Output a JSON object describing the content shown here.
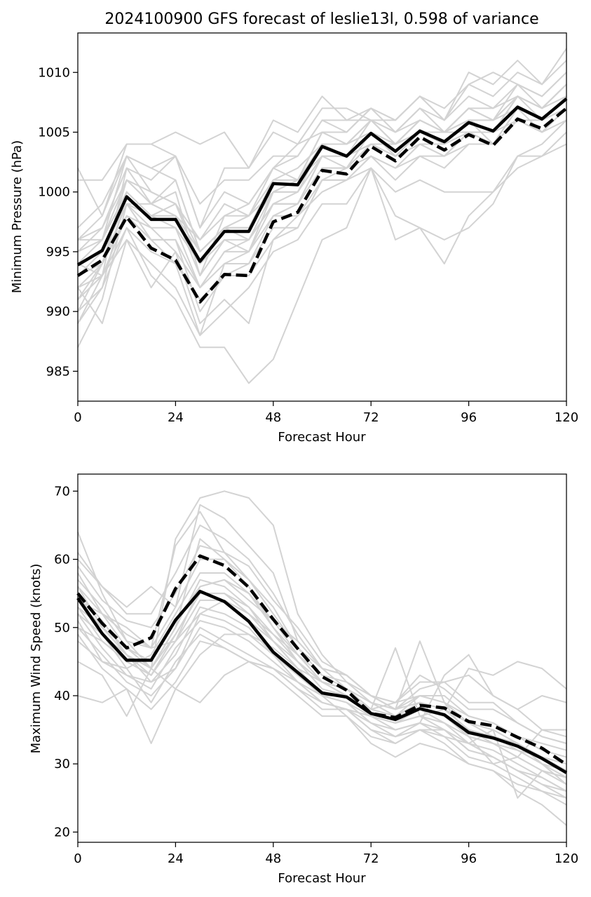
{
  "title": "2024100900 GFS forecast of leslie13l, 0.598 of variance",
  "colors": {
    "ensemble": "#d3d3d3",
    "mean": "#000000",
    "axes": "#000000"
  },
  "chart_data": [
    {
      "type": "line",
      "title": "2024100900 GFS forecast of leslie13l, 0.598 of variance",
      "xlabel": "Forecast Hour",
      "ylabel": "Minimum Pressure (hPa)",
      "xlim": [
        0,
        120
      ],
      "ylim": [
        982.5,
        1013.3
      ],
      "xticks": [
        0,
        24,
        48,
        72,
        96,
        120
      ],
      "yticks": [
        985,
        990,
        995,
        1000,
        1005,
        1010
      ],
      "x": [
        0,
        6,
        12,
        18,
        24,
        30,
        36,
        42,
        48,
        54,
        60,
        66,
        72,
        78,
        84,
        90,
        96,
        102,
        108,
        114,
        120
      ],
      "grid": false,
      "legend": "none",
      "series": [
        {
          "style": "solid",
          "values": [
            993.9,
            995.1,
            999.6,
            997.7,
            997.7,
            994.2,
            996.7,
            996.7,
            1000.7,
            1000.6,
            1003.8,
            1003.0,
            1004.9,
            1003.4,
            1005.1,
            1004.2,
            1005.8,
            1005.1,
            1007.1,
            1006.1,
            1007.8
          ]
        },
        {
          "style": "dashed",
          "values": [
            993.0,
            994.3,
            997.9,
            995.3,
            994.3,
            990.8,
            993.1,
            993.0,
            997.5,
            998.3,
            1001.8,
            1001.5,
            1003.8,
            1002.6,
            1004.6,
            1003.5,
            1004.8,
            1003.9,
            1006.1,
            1005.3,
            1007.0
          ]
        }
      ],
      "ensemble": [
        [
          987,
          991,
          999,
          996,
          994,
          988,
          994,
          995,
          1000,
          1000,
          1003,
          1003,
          1004,
          1003,
          1004,
          1004,
          1006,
          1005,
          1008,
          1006,
          1008
        ],
        [
          989,
          993,
          1002,
          999,
          1000,
          993,
          998,
          999,
          1002,
          1001,
          1005,
          1004,
          1006,
          1005,
          1006,
          1005,
          1007,
          1006,
          1009,
          1007,
          1009
        ],
        [
          990,
          992,
          1000,
          998,
          997,
          992,
          995,
          996,
          999,
          1000,
          1004,
          1003,
          1005,
          1004,
          1005,
          1004,
          1006,
          1005,
          1007,
          1006,
          1008
        ],
        [
          992,
          994,
          1001,
          999,
          1001,
          995,
          997,
          998,
          1001,
          1002,
          1004,
          1004,
          1005,
          1004,
          1006,
          1005,
          1006,
          1005,
          1008,
          1007,
          1009
        ],
        [
          994,
          996,
          1003,
          1000,
          999,
          996,
          999,
          998,
          1002,
          1003,
          1006,
          1005,
          1007,
          1005,
          1007,
          1006,
          1008,
          1007,
          1009,
          1008,
          1010
        ],
        [
          996,
          998,
          1004,
          1004,
          1005,
          1004,
          1005,
          1002,
          1006,
          1005,
          1008,
          1006,
          1007,
          1006,
          1008,
          1006,
          1010,
          1009,
          1011,
          1009,
          1012
        ],
        [
          995,
          997,
          1002,
          1001,
          1003,
          999,
          1001,
          1001,
          1003,
          1003,
          1006,
          1006,
          1006,
          1005,
          1007,
          1005,
          1007,
          1007,
          1008,
          1007,
          1009
        ],
        [
          997,
          999,
          1003,
          1002,
          1003,
          997,
          1000,
          999,
          1002,
          1004,
          1005,
          1005,
          1007,
          1006,
          1008,
          1007,
          1009,
          1008,
          1010,
          1009,
          1011
        ],
        [
          992,
          989,
          996,
          992,
          995,
          989,
          991,
          989,
          996,
          997,
          1001,
          1001,
          1003,
          1001,
          1003,
          1002,
          1004,
          1004,
          1006,
          1005,
          1006
        ],
        [
          991,
          993,
          997,
          995,
          994,
          991,
          993,
          993,
          996,
          998,
          1000,
          1001,
          1002,
          1000,
          1001,
          1000,
          1000,
          1000,
          1003,
          1003,
          1004
        ],
        [
          990,
          994,
          998,
          996,
          996,
          990,
          993,
          994,
          997,
          997,
          1001,
          1001,
          1003,
          1002,
          1003,
          1003,
          1005,
          1004,
          1007,
          1005,
          1007
        ],
        [
          993,
          995,
          999,
          998,
          998,
          993,
          996,
          996,
          999,
          999,
          1003,
          1002,
          1004,
          1003,
          1004,
          1004,
          1006,
          1004,
          1006,
          1005,
          1007
        ],
        [
          993,
          994,
          999,
          999,
          998,
          995,
          997,
          997,
          1001,
          1001,
          1003,
          1003,
          1006,
          1004,
          1005,
          1005,
          1007,
          1006,
          1007,
          1006,
          1008
        ],
        [
          996,
          997,
          1001,
          999,
          998,
          996,
          998,
          998,
          1000,
          1001,
          1005,
          1004,
          1005,
          1004,
          1006,
          1005,
          1006,
          1006,
          1007,
          1006,
          1008
        ],
        [
          992,
          993,
          996,
          994,
          992,
          988,
          990,
          992,
          995,
          996,
          999,
          999,
          1002,
          998,
          997,
          994,
          998,
          1000,
          1002,
          1003,
          1005
        ],
        [
          989,
          992,
          997,
          993,
          991,
          987,
          987,
          984,
          986,
          991,
          996,
          997,
          1002,
          996,
          997,
          996,
          997,
          999,
          1003,
          1004,
          1006
        ],
        [
          994,
          995,
          999,
          997,
          995,
          992,
          994,
          994,
          998,
          998,
          1001,
          1002,
          1003,
          1002,
          1004,
          1003,
          1004,
          1004,
          1007,
          1006,
          1007
        ],
        [
          991,
          994,
          998,
          997,
          997,
          994,
          996,
          995,
          998,
          999,
          1002,
          1002,
          1005,
          1003,
          1005,
          1004,
          1005,
          1005,
          1007,
          1006,
          1008
        ],
        [
          995,
          996,
          1000,
          998,
          999,
          995,
          997,
          997,
          1000,
          1001,
          1004,
          1004,
          1006,
          1004,
          1006,
          1005,
          1006,
          1006,
          1008,
          1007,
          1008
        ],
        [
          1001,
          1001,
          1004,
          1004,
          1003,
          997,
          1002,
          1002,
          1005,
          1004,
          1007,
          1007,
          1006,
          1006,
          1008,
          1006,
          1009,
          1010,
          1009,
          1008,
          1010
        ],
        [
          1002,
          998,
          1003,
          1002,
          1001,
          995,
          997,
          996,
          999,
          999,
          1003,
          1003,
          1004,
          1004,
          1005,
          1005,
          1005,
          1005,
          1006,
          1006,
          1007
        ],
        [
          994,
          993,
          998,
          996,
          996,
          992,
          995,
          995,
          999,
          999,
          1002,
          1002,
          1004,
          1003,
          1004,
          1003,
          1005,
          1004,
          1006,
          1005,
          1007
        ],
        [
          996,
          996,
          1001,
          1000,
          999,
          994,
          997,
          996,
          1000,
          1000,
          1003,
          1003,
          1005,
          1003,
          1005,
          1005,
          1007,
          1006,
          1008,
          1007,
          1009
        ]
      ]
    },
    {
      "type": "line",
      "title": "",
      "xlabel": "Forecast Hour",
      "ylabel": "Maximum Wind Speed (knots)",
      "xlim": [
        0,
        120
      ],
      "ylim": [
        18.5,
        72.5
      ],
      "xticks": [
        0,
        24,
        48,
        72,
        96,
        120
      ],
      "yticks": [
        20,
        30,
        40,
        50,
        60,
        70
      ],
      "x": [
        0,
        6,
        12,
        18,
        24,
        30,
        36,
        42,
        48,
        54,
        60,
        66,
        72,
        78,
        84,
        90,
        96,
        102,
        108,
        114,
        120
      ],
      "grid": false,
      "legend": "none",
      "series": [
        {
          "style": "solid",
          "values": [
            54.3,
            49.1,
            45.2,
            45.2,
            51.1,
            55.3,
            53.8,
            50.9,
            46.4,
            43.4,
            40.4,
            39.8,
            37.4,
            36.5,
            38.1,
            37.2,
            34.6,
            33.8,
            32.6,
            30.8,
            28.7
          ]
        },
        {
          "style": "dashed",
          "values": [
            55.0,
            50.6,
            47.0,
            48.5,
            55.7,
            60.5,
            59.1,
            55.9,
            51.2,
            46.9,
            42.8,
            40.8,
            37.4,
            36.8,
            38.6,
            38.2,
            36.2,
            35.6,
            33.9,
            32.3,
            29.9
          ]
        }
      ],
      "ensemble": [
        [
          64,
          55,
          48,
          44,
          63,
          69,
          70,
          69,
          65,
          52,
          46,
          42,
          40,
          38,
          40,
          40,
          37,
          36,
          34,
          33,
          32
        ],
        [
          60,
          56,
          53,
          56,
          53,
          68,
          66,
          62,
          58,
          48,
          44,
          41,
          38,
          39,
          43,
          41,
          38,
          38,
          36,
          34,
          33
        ],
        [
          58,
          52,
          50,
          47,
          62,
          67,
          61,
          57,
          52,
          47,
          44,
          43,
          40,
          38,
          39,
          38,
          36,
          34,
          33,
          30,
          29
        ],
        [
          56,
          50,
          47,
          44,
          50,
          63,
          60,
          57,
          53,
          47,
          43,
          41,
          39,
          37,
          38,
          37,
          35,
          34,
          32,
          30,
          28
        ],
        [
          55,
          49,
          44,
          46,
          52,
          58,
          58,
          55,
          50,
          45,
          42,
          41,
          38,
          37,
          39,
          38,
          35,
          34,
          33,
          30,
          27
        ],
        [
          54,
          52,
          49,
          47,
          48,
          56,
          57,
          54,
          51,
          46,
          42,
          40,
          38,
          37,
          38,
          37,
          34,
          33,
          32,
          31,
          29
        ],
        [
          53,
          48,
          45,
          43,
          49,
          55,
          55,
          52,
          48,
          44,
          40,
          40,
          37,
          36,
          37,
          36,
          34,
          33,
          31,
          29,
          27
        ],
        [
          52,
          47,
          43,
          42,
          46,
          53,
          52,
          50,
          46,
          43,
          40,
          39,
          37,
          36,
          38,
          36,
          33,
          32,
          30,
          28,
          26
        ],
        [
          51,
          45,
          43,
          41,
          47,
          51,
          50,
          48,
          45,
          42,
          39,
          38,
          36,
          35,
          36,
          35,
          32,
          31,
          29,
          27,
          26
        ],
        [
          50,
          46,
          42,
          40,
          44,
          50,
          48,
          46,
          44,
          41,
          38,
          38,
          35,
          34,
          36,
          34,
          31,
          30,
          28,
          26,
          25
        ],
        [
          49,
          44,
          41,
          38,
          42,
          48,
          47,
          45,
          43,
          40,
          37,
          37,
          34,
          33,
          35,
          33,
          30,
          29,
          27,
          26,
          24
        ],
        [
          45,
          43,
          37,
          44,
          41,
          39,
          43,
          45,
          44,
          41,
          39,
          38,
          37,
          36,
          37,
          35,
          33,
          31,
          29,
          27,
          25
        ],
        [
          40,
          39,
          41,
          33,
          41,
          46,
          49,
          49,
          47,
          44,
          40,
          37,
          33,
          31,
          33,
          32,
          30,
          29,
          26,
          24,
          21
        ],
        [
          55,
          51,
          46,
          43,
          48,
          52,
          51,
          49,
          46,
          42,
          39,
          38,
          35,
          33,
          35,
          35,
          32,
          31,
          29,
          28,
          26
        ],
        [
          57,
          53,
          48,
          47,
          53,
          60,
          60,
          56,
          50,
          46,
          43,
          42,
          39,
          37,
          40,
          39,
          37,
          36,
          34,
          32,
          31
        ],
        [
          59,
          54,
          51,
          50,
          55,
          62,
          61,
          59,
          54,
          50,
          45,
          43,
          40,
          38,
          41,
          42,
          39,
          39,
          36,
          34,
          33
        ],
        [
          61,
          56,
          52,
          52,
          58,
          65,
          63,
          60,
          55,
          49,
          44,
          43,
          40,
          39,
          42,
          42,
          43,
          40,
          38,
          35,
          34
        ],
        [
          52,
          49,
          46,
          44,
          50,
          57,
          56,
          53,
          49,
          45,
          42,
          41,
          39,
          38,
          48,
          39,
          34,
          30,
          31,
          35,
          35
        ],
        [
          50,
          48,
          45,
          43,
          48,
          54,
          54,
          51,
          48,
          44,
          42,
          41,
          38,
          47,
          37,
          38,
          44,
          43,
          45,
          44,
          41
        ],
        [
          53,
          50,
          46,
          42,
          44,
          52,
          54,
          52,
          49,
          46,
          42,
          40,
          37,
          35,
          36,
          43,
          46,
          40,
          38,
          40,
          39
        ],
        [
          48,
          45,
          44,
          39,
          45,
          49,
          47,
          45,
          44,
          42,
          40,
          39,
          36,
          34,
          35,
          34,
          33,
          35,
          25,
          29,
          28
        ],
        [
          56,
          52,
          47,
          45,
          51,
          56,
          57,
          55,
          51,
          48,
          44,
          43,
          40,
          39,
          40,
          39,
          36,
          35,
          33,
          31,
          30
        ],
        [
          54,
          50,
          47,
          44,
          49,
          55,
          55,
          53,
          48,
          45,
          41,
          40,
          38,
          37,
          38,
          37,
          35,
          33,
          31,
          29,
          28
        ]
      ]
    }
  ]
}
